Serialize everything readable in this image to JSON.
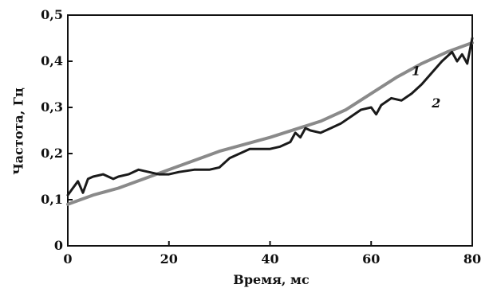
{
  "chart_data": {
    "type": "line",
    "title": "",
    "xlabel": "Время, мс",
    "ylabel": "Частота, Гц",
    "xlim": [
      0,
      80
    ],
    "ylim": [
      0,
      0.5
    ],
    "x_ticks": [
      "0",
      "20",
      "40",
      "60",
      "80"
    ],
    "y_ticks": [
      "0",
      "0,1",
      "0,2",
      "0,3",
      "0,4",
      "0,5"
    ],
    "grid": false,
    "legend": "none",
    "series": [
      {
        "name": "1",
        "color": "#8a8a8a",
        "x": [
          0,
          5,
          10,
          20,
          30,
          40,
          50,
          55,
          60,
          65,
          70,
          75,
          80
        ],
        "y": [
          0.09,
          0.11,
          0.125,
          0.165,
          0.205,
          0.235,
          0.27,
          0.295,
          0.33,
          0.365,
          0.395,
          0.42,
          0.44
        ]
      },
      {
        "name": "2",
        "color": "#1a1a1a",
        "x": [
          0,
          1,
          2,
          3,
          4,
          5,
          7,
          9,
          10,
          12,
          14,
          16,
          18,
          20,
          22,
          25,
          28,
          30,
          32,
          34,
          36,
          38,
          40,
          42,
          44,
          45,
          46,
          47,
          48,
          50,
          52,
          54,
          56,
          58,
          60,
          61,
          62,
          64,
          66,
          68,
          70,
          72,
          74,
          76,
          77,
          78,
          79,
          80
        ],
        "y": [
          0.11,
          0.125,
          0.14,
          0.115,
          0.145,
          0.15,
          0.155,
          0.145,
          0.15,
          0.155,
          0.165,
          0.16,
          0.155,
          0.155,
          0.16,
          0.165,
          0.165,
          0.17,
          0.19,
          0.2,
          0.21,
          0.21,
          0.21,
          0.215,
          0.225,
          0.245,
          0.235,
          0.255,
          0.25,
          0.245,
          0.255,
          0.265,
          0.28,
          0.295,
          0.3,
          0.285,
          0.305,
          0.32,
          0.315,
          0.33,
          0.35,
          0.375,
          0.4,
          0.42,
          0.4,
          0.415,
          0.395,
          0.45
        ]
      }
    ],
    "annotations": [
      {
        "text": "1",
        "x": 68,
        "y": 0.37
      },
      {
        "text": "2",
        "x": 72,
        "y": 0.3
      }
    ]
  }
}
